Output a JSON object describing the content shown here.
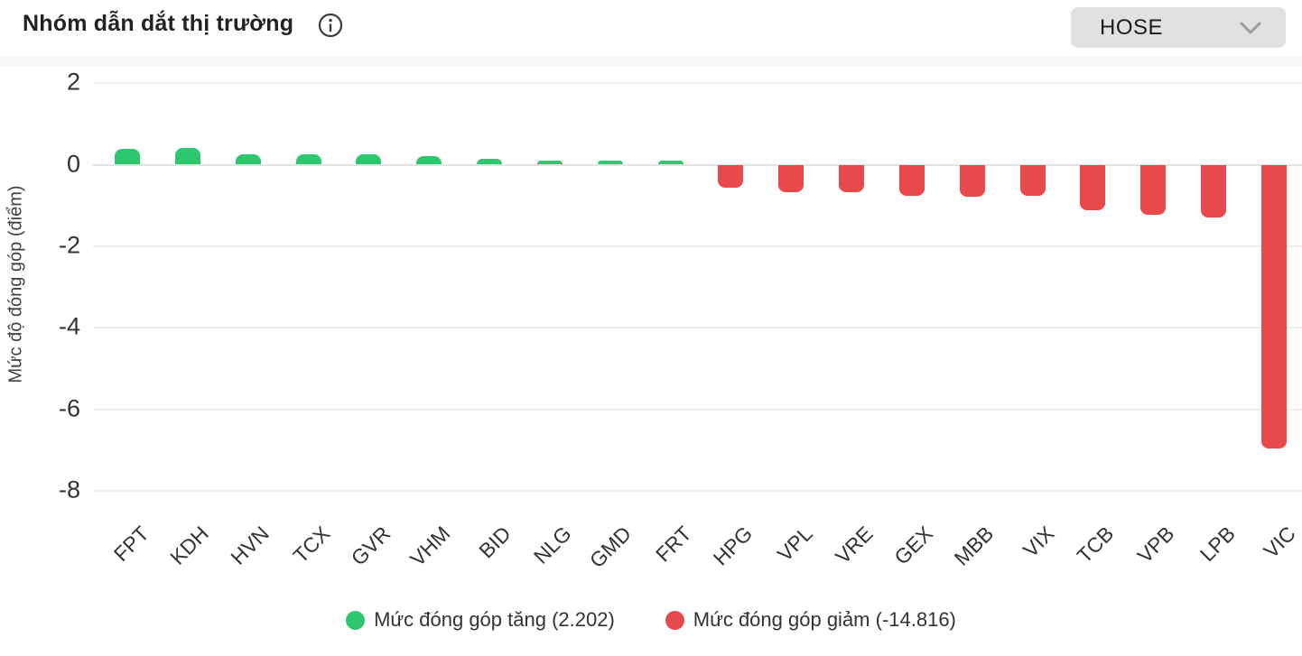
{
  "header": {
    "title": "Nhóm dẫn dắt thị trường",
    "info_icon": "info-circle-icon",
    "exchange_dropdown": {
      "value": "HOSE",
      "chevron_icon": "chevron-down-icon"
    }
  },
  "chart_data": {
    "type": "bar",
    "title": "Nhóm dẫn dắt thị trường",
    "xlabel": "",
    "ylabel": "Mức độ đóng góp (điểm)",
    "ylim": [
      -8,
      2
    ],
    "yticks": [
      2,
      0,
      -2,
      -4,
      -6,
      -8
    ],
    "grid": true,
    "legend_position": "bottom",
    "categories": [
      "FPT",
      "KDH",
      "HVN",
      "TCX",
      "GVR",
      "VHM",
      "BID",
      "NLG",
      "GMD",
      "FRT",
      "HPG",
      "VPL",
      "VRE",
      "GEX",
      "MBB",
      "VIX",
      "TCB",
      "VPB",
      "LPB",
      "VIC"
    ],
    "values": [
      0.39,
      0.41,
      0.25,
      0.26,
      0.26,
      0.21,
      0.14,
      0.1,
      0.09,
      0.09,
      -0.57,
      -0.67,
      -0.68,
      -0.77,
      -0.79,
      -0.76,
      -1.11,
      -1.22,
      -1.3,
      -6.95
    ],
    "positive_color": "#2dc76f",
    "negative_color": "#e8494c",
    "legend": [
      {
        "label": "Mức đóng góp tăng (2.202)",
        "color": "#2dc76f",
        "total": 2.202
      },
      {
        "label": "Mức đóng góp giảm (-14.816)",
        "color": "#e8494c",
        "total": -14.816
      }
    ]
  },
  "colors": {
    "grid": "#eeeeee",
    "zero_line": "#e3e3e3",
    "axis_text": "#333333",
    "dropdown_bg": "#e1e1e1"
  }
}
